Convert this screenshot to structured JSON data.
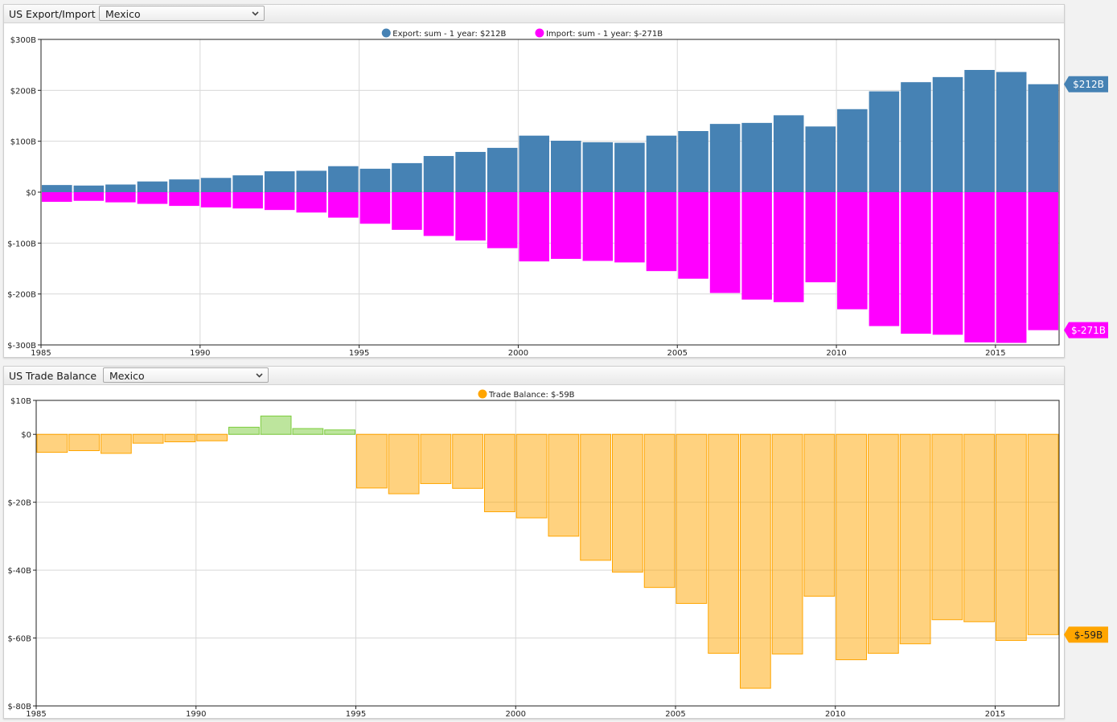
{
  "panels": [
    {
      "title": "US Export/Import",
      "country": "Mexico",
      "legend": [
        {
          "label": "Export: sum - 1 year: $212B",
          "color": "#4682b4"
        },
        {
          "label": "Import: sum - 1 year: $-271B",
          "color": "#ff00ff"
        }
      ],
      "end_labels": [
        {
          "text": "$212B",
          "color": "#4682b4",
          "value": 212
        },
        {
          "text": "$-271B",
          "color": "#ff00ff",
          "value": -271
        }
      ]
    },
    {
      "title": "US Trade Balance",
      "country": "Mexico",
      "legend": [
        {
          "label": "Trade Balance: $-59B",
          "color": "#ffa500"
        }
      ],
      "end_labels": [
        {
          "text": "$-59B",
          "color": "#ffa500",
          "value": -59
        }
      ]
    }
  ],
  "icons": {
    "dropdown": "chevron-down-icon"
  },
  "chart_data": [
    {
      "type": "bar",
      "x": [
        1985,
        1986,
        1987,
        1988,
        1989,
        1990,
        1991,
        1992,
        1993,
        1994,
        1995,
        1996,
        1997,
        1998,
        1999,
        2000,
        2001,
        2002,
        2003,
        2004,
        2005,
        2006,
        2007,
        2008,
        2009,
        2010,
        2011,
        2012,
        2013,
        2014,
        2015,
        2016
      ],
      "series": [
        {
          "name": "Export: sum - 1 year: $212B",
          "color": "#4682b4",
          "values": [
            14,
            13,
            15,
            21,
            25,
            28,
            33,
            41,
            42,
            51,
            46,
            57,
            71,
            79,
            87,
            111,
            101,
            98,
            97,
            111,
            120,
            134,
            136,
            151,
            129,
            163,
            198,
            216,
            226,
            240,
            236,
            212
          ]
        },
        {
          "name": "Import: sum - 1 year: $-271B",
          "color": "#ff00ff",
          "values": [
            -19,
            -17,
            -20,
            -23,
            -27,
            -30,
            -32,
            -35,
            -40,
            -50,
            -62,
            -74,
            -86,
            -95,
            -110,
            -136,
            -131,
            -135,
            -138,
            -155,
            -170,
            -198,
            -211,
            -216,
            -177,
            -230,
            -263,
            -278,
            -280,
            -295,
            -296,
            -271
          ]
        }
      ],
      "xlim": [
        1985,
        2017
      ],
      "ylim": [
        -300,
        300
      ],
      "yticks": [
        {
          "value": 300,
          "label": "$300B"
        },
        {
          "value": 200,
          "label": "$200B"
        },
        {
          "value": 100,
          "label": "$100B"
        },
        {
          "value": 0,
          "label": "$0"
        },
        {
          "value": -100,
          "label": "$-100B"
        },
        {
          "value": -200,
          "label": "$-200B"
        },
        {
          "value": -300,
          "label": "$-300B"
        }
      ],
      "xticks": [
        {
          "value": 1985,
          "label": "1985"
        },
        {
          "value": 1990,
          "label": "1990"
        },
        {
          "value": 1995,
          "label": "1995"
        },
        {
          "value": 2000,
          "label": "2000"
        },
        {
          "value": 2005,
          "label": "2005"
        },
        {
          "value": 2010,
          "label": "2010"
        },
        {
          "value": 2015,
          "label": "2015"
        }
      ],
      "grid": true,
      "legend_position": "top-center"
    },
    {
      "type": "bar",
      "x": [
        1985,
        1986,
        1987,
        1988,
        1989,
        1990,
        1991,
        1992,
        1993,
        1994,
        1995,
        1996,
        1997,
        1998,
        1999,
        2000,
        2001,
        2002,
        2003,
        2004,
        2005,
        2006,
        2007,
        2008,
        2009,
        2010,
        2011,
        2012,
        2013,
        2014,
        2015,
        2016
      ],
      "series": [
        {
          "name": "Trade Balance: $-59B",
          "color_negative": "#ffa500",
          "color_positive": "#7ccc3c",
          "values": [
            -5.3,
            -4.8,
            -5.6,
            -2.6,
            -2.2,
            -1.9,
            2.1,
            5.4,
            1.7,
            1.3,
            -15.8,
            -17.5,
            -14.5,
            -15.9,
            -22.8,
            -24.6,
            -30.0,
            -37.1,
            -40.6,
            -45.1,
            -49.8,
            -64.5,
            -74.8,
            -64.7,
            -47.7,
            -66.4,
            -64.5,
            -61.7,
            -54.6,
            -55.2,
            -60.7,
            -59.0
          ]
        }
      ],
      "xlim": [
        1985,
        2017
      ],
      "ylim": [
        -80,
        10
      ],
      "yticks": [
        {
          "value": 10,
          "label": "$10B"
        },
        {
          "value": 0,
          "label": "$0"
        },
        {
          "value": -20,
          "label": "$-20B"
        },
        {
          "value": -40,
          "label": "$-40B"
        },
        {
          "value": -60,
          "label": "$-60B"
        },
        {
          "value": -80,
          "label": "$-80B"
        }
      ],
      "xticks": [
        {
          "value": 1985,
          "label": "1985"
        },
        {
          "value": 1990,
          "label": "1990"
        },
        {
          "value": 1995,
          "label": "1995"
        },
        {
          "value": 2000,
          "label": "2000"
        },
        {
          "value": 2005,
          "label": "2005"
        },
        {
          "value": 2010,
          "label": "2010"
        },
        {
          "value": 2015,
          "label": "2015"
        }
      ],
      "grid": true,
      "legend_position": "top-center"
    }
  ]
}
